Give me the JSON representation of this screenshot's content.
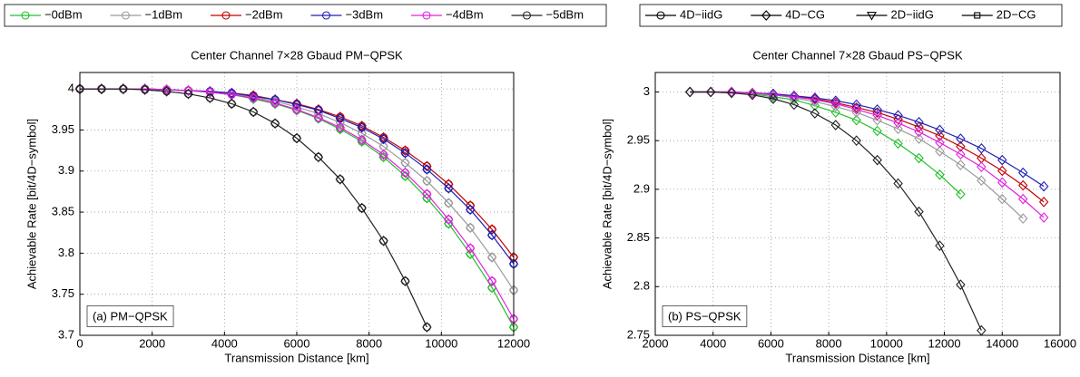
{
  "chart_data": [
    {
      "type": "line",
      "title": "Center Channel 7×28 Gbaud PM−QPSK",
      "x_label": "Transmission Distance [km]",
      "y_label": "Achievable Rate [bit/4D−symbol]",
      "annotation": "(a) PM−QPSK",
      "x": [
        0,
        600,
        1200,
        1800,
        2400,
        3000,
        3600,
        4200,
        4800,
        5400,
        6000,
        6600,
        7200,
        7800,
        8400,
        9000,
        9600,
        10200,
        10800,
        11400,
        12000
      ],
      "xlim": [
        0,
        12000
      ],
      "ylim": [
        3.7,
        4.02
      ],
      "xticks": [
        0,
        2000,
        4000,
        6000,
        8000,
        10000,
        12000
      ],
      "yticks": [
        3.7,
        3.75,
        3.8,
        3.85,
        3.9,
        3.95,
        4
      ],
      "grid": true,
      "markers": [
        "circle",
        "diamond"
      ],
      "series": [
        {
          "name": "−0dBm",
          "color": "#22c02a",
          "values": [
            4,
            4,
            4,
            4,
            3.999,
            3.998,
            3.996,
            3.993,
            3.988,
            3.982,
            3.974,
            3.964,
            3.951,
            3.936,
            3.917,
            3.894,
            3.867,
            3.836,
            3.799,
            3.758,
            3.71
          ]
        },
        {
          "name": "−1dBm",
          "color": "#9a9a9a",
          "values": [
            4,
            4,
            4,
            4,
            3.999,
            3.998,
            3.996,
            3.994,
            3.99,
            3.985,
            3.978,
            3.97,
            3.959,
            3.946,
            3.93,
            3.91,
            3.888,
            3.861,
            3.831,
            3.795,
            3.755
          ]
        },
        {
          "name": "−2dBm",
          "color": "#c00000",
          "values": [
            4,
            4,
            4,
            4,
            3.999,
            3.998,
            3.997,
            3.995,
            3.992,
            3.987,
            3.982,
            3.975,
            3.966,
            3.955,
            3.941,
            3.925,
            3.906,
            3.884,
            3.858,
            3.829,
            3.795
          ]
        },
        {
          "name": "−3dBm",
          "color": "#1f1fb4",
          "values": [
            4,
            4,
            4,
            4,
            3.999,
            3.998,
            3.997,
            3.995,
            3.991,
            3.987,
            3.981,
            3.974,
            3.964,
            3.953,
            3.939,
            3.922,
            3.902,
            3.879,
            3.853,
            3.822,
            3.787
          ]
        },
        {
          "name": "−4dBm",
          "color": "#e020e0",
          "values": [
            4,
            4,
            4,
            4,
            3.999,
            3.998,
            3.996,
            3.993,
            3.989,
            3.983,
            3.975,
            3.965,
            3.953,
            3.938,
            3.92,
            3.898,
            3.872,
            3.841,
            3.806,
            3.766,
            3.72
          ]
        },
        {
          "name": "−5dBm",
          "color": "#222222",
          "values": [
            4,
            4,
            4,
            3.999,
            3.997,
            3.994,
            3.989,
            3.982,
            3.972,
            3.958,
            3.94,
            3.917,
            3.89,
            3.855,
            3.815,
            3.766,
            3.71,
            null,
            null,
            null,
            null
          ]
        }
      ]
    },
    {
      "type": "line",
      "title": "Center Channel 7×28 Gbaud PS−QPSK",
      "x_label": "Transmission Distance [km]",
      "y_label": "Achievable Rate [bit/4D−symbol]",
      "annotation": "(b) PS−QPSK",
      "x": [
        3200,
        3920,
        4640,
        5360,
        6080,
        6800,
        7520,
        8240,
        8960,
        9680,
        10400,
        11120,
        11840,
        12560,
        13280,
        14000,
        14720,
        15440
      ],
      "xlim": [
        2000,
        16000
      ],
      "ylim": [
        2.75,
        3.02
      ],
      "xticks": [
        2000,
        4000,
        6000,
        8000,
        10000,
        12000,
        14000,
        16000
      ],
      "yticks": [
        2.75,
        2.8,
        2.85,
        2.9,
        2.95,
        3
      ],
      "grid": true,
      "markers": [
        "diamond"
      ],
      "marker_legend": [
        {
          "name": "4D−iidG",
          "marker": "circle"
        },
        {
          "name": "4D−CG",
          "marker": "diamond"
        },
        {
          "name": "2D−iidG",
          "marker": "triangle"
        },
        {
          "name": "2D−CG",
          "marker": "square"
        }
      ],
      "marker_legend_color": "#000000",
      "series": [
        {
          "color": "#22c02a",
          "values": [
            3,
            3,
            2.999,
            2.998,
            2.995,
            2.992,
            2.986,
            2.979,
            2.971,
            2.96,
            2.947,
            2.932,
            2.915,
            2.895,
            null,
            null,
            null,
            null
          ]
        },
        {
          "color": "#9a9a9a",
          "values": [
            3,
            3,
            2.999,
            2.998,
            2.997,
            2.994,
            2.99,
            2.985,
            2.979,
            2.971,
            2.962,
            2.952,
            2.939,
            2.925,
            2.909,
            2.89,
            2.87,
            null
          ]
        },
        {
          "color": "#c00000",
          "values": [
            3,
            3,
            3,
            2.999,
            2.998,
            2.996,
            2.993,
            2.989,
            2.984,
            2.979,
            2.972,
            2.964,
            2.955,
            2.944,
            2.932,
            2.919,
            2.904,
            2.887
          ]
        },
        {
          "color": "#1f1fb4",
          "values": [
            3,
            3,
            3,
            2.999,
            2.998,
            2.996,
            2.994,
            2.991,
            2.987,
            2.982,
            2.976,
            2.969,
            2.961,
            2.952,
            2.942,
            2.93,
            2.917,
            2.903
          ]
        },
        {
          "color": "#e020e0",
          "values": [
            3,
            3,
            3,
            2.999,
            2.997,
            2.995,
            2.992,
            2.988,
            2.982,
            2.976,
            2.968,
            2.959,
            2.948,
            2.936,
            2.923,
            2.907,
            2.89,
            2.871
          ]
        },
        {
          "color": "#222222",
          "values": [
            3,
            3,
            2.999,
            2.997,
            2.993,
            2.987,
            2.978,
            2.966,
            2.95,
            2.93,
            2.906,
            2.877,
            2.842,
            2.802,
            2.755,
            null,
            null,
            null
          ]
        }
      ]
    }
  ]
}
